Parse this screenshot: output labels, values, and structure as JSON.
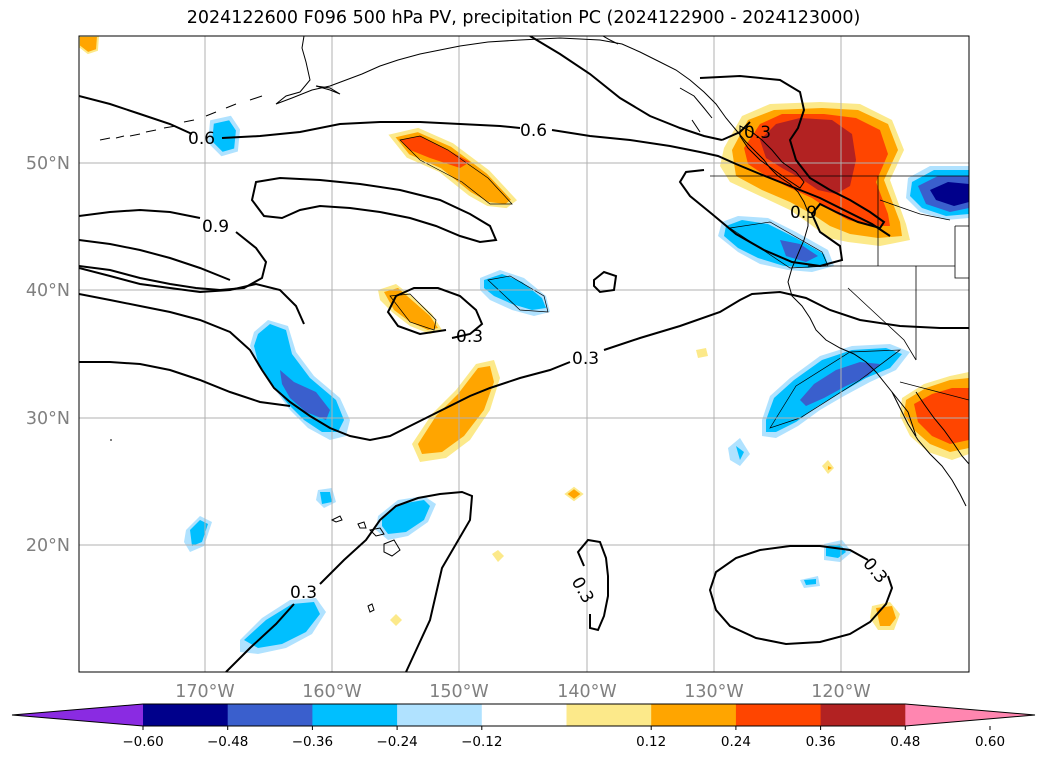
{
  "title": "2024122600 F096 500 hPa PV, precipitation PC (2024122900 - 2024123000)",
  "map": {
    "lat_labels": [
      "50°N",
      "40°N",
      "30°N",
      "20°N"
    ],
    "lon_labels": [
      "170°W",
      "160°W",
      "150°W",
      "140°W",
      "130°W",
      "120°W"
    ],
    "contour_labels": [
      "0.6",
      "0.6",
      "0.9",
      "0.3",
      "0.3",
      "0.3",
      "0.3",
      "0.3",
      "0.9",
      "0.3"
    ]
  },
  "colorbar": {
    "ticks": [
      "−0.60",
      "−0.48",
      "−0.36",
      "−0.24",
      "−0.12",
      "0.12",
      "0.24",
      "0.36",
      "0.48",
      "0.60"
    ],
    "colors": [
      "#8a2be2",
      "#00008b",
      "#3a5fcd",
      "#00bfff",
      "#b0e2ff",
      "#ffffff",
      "#fce98a",
      "#ffa500",
      "#ff4500",
      "#b22222",
      "#ff86b0"
    ]
  },
  "field_colors": {
    "neg_light": "#b0e2ff",
    "neg_mid": "#00bfff",
    "neg_strong": "#3a5fcd",
    "neg_max": "#00008b",
    "pos_light": "#fce98a",
    "pos_mid": "#ffa500",
    "pos_strong": "#ff4500",
    "pos_max": "#b22222"
  }
}
